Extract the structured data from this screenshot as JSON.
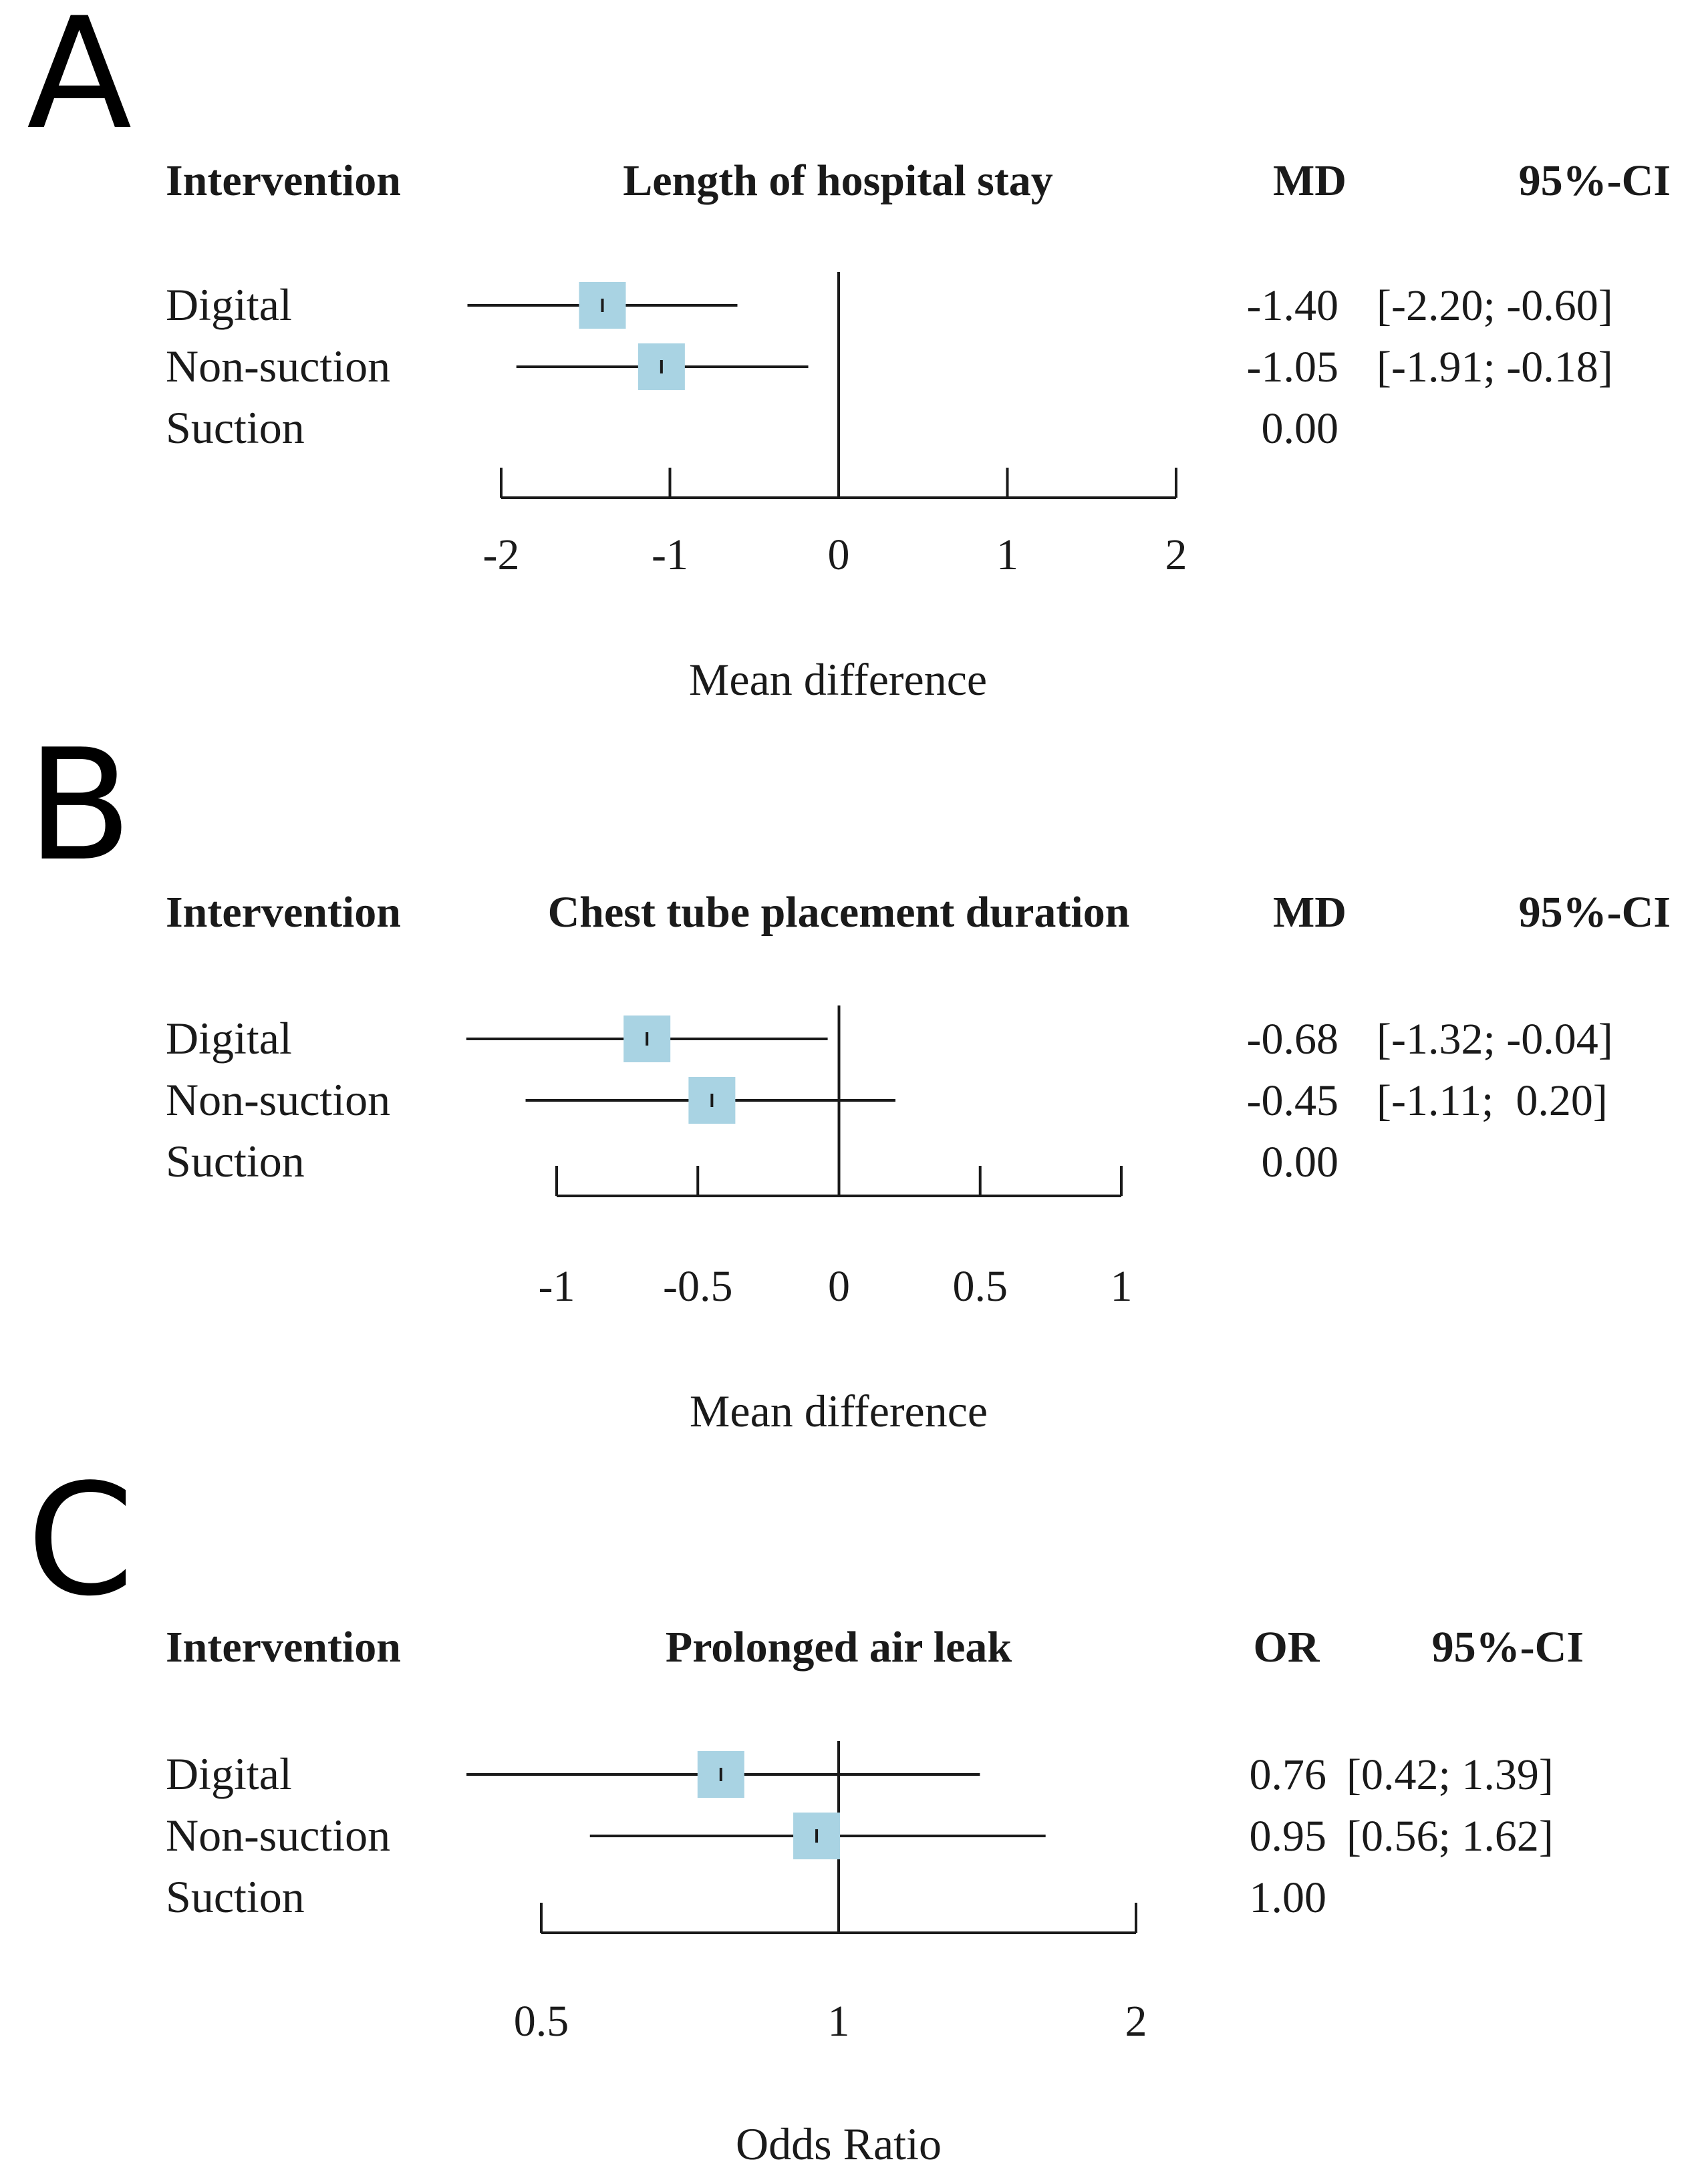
{
  "chart_data": [
    {
      "type": "forest",
      "panel": "A",
      "outcome": "Length of hospital stay",
      "headers": {
        "intervention": "Intervention",
        "estimate": "MD",
        "ci": "95%-CI"
      },
      "xlabel": "Mean difference",
      "scale": "linear",
      "xlim": [
        -2,
        2
      ],
      "ticks": [
        -2,
        -1,
        0,
        1,
        2
      ],
      "tick_labels": [
        "-2",
        "-1",
        "0",
        "1",
        "2"
      ],
      "reference": 0,
      "rows": [
        {
          "label": "Digital",
          "estimate": -1.4,
          "lower": -2.2,
          "upper": -0.6,
          "estimate_text": "-1.40",
          "ci_text": "[-2.20; -0.60]"
        },
        {
          "label": "Non-suction",
          "estimate": -1.05,
          "lower": -1.91,
          "upper": -0.18,
          "estimate_text": "-1.05",
          "ci_text": "[-1.91; -0.18]"
        },
        {
          "label": "Suction",
          "estimate": 0.0,
          "lower": null,
          "upper": null,
          "estimate_text": "0.00",
          "ci_text": ""
        }
      ]
    },
    {
      "type": "forest",
      "panel": "B",
      "outcome": "Chest tube placement duration",
      "headers": {
        "intervention": "Intervention",
        "estimate": "MD",
        "ci": "95%-CI"
      },
      "xlabel": "Mean difference",
      "scale": "linear",
      "xlim": [
        -1,
        1
      ],
      "ticks": [
        -1,
        -0.5,
        0,
        0.5,
        1
      ],
      "tick_labels": [
        "-1",
        "-0.5",
        "0",
        "0.5",
        "1"
      ],
      "reference": 0,
      "rows": [
        {
          "label": "Digital",
          "estimate": -0.68,
          "lower": -1.32,
          "upper": -0.04,
          "estimate_text": "-0.68",
          "ci_text": "[-1.32; -0.04]"
        },
        {
          "label": "Non-suction",
          "estimate": -0.45,
          "lower": -1.11,
          "upper": 0.2,
          "estimate_text": "-0.45",
          "ci_text": "[-1.11;  0.20]"
        },
        {
          "label": "Suction",
          "estimate": 0.0,
          "lower": null,
          "upper": null,
          "estimate_text": "0.00",
          "ci_text": ""
        }
      ]
    },
    {
      "type": "forest",
      "panel": "C",
      "outcome": "Prolonged air leak",
      "headers": {
        "intervention": "Intervention",
        "estimate": "OR",
        "ci": "95%-CI"
      },
      "xlabel": "Odds Ratio",
      "scale": "log",
      "xlim": [
        0.5,
        2
      ],
      "ticks": [
        0.5,
        1,
        2
      ],
      "tick_labels": [
        "0.5",
        "1",
        "2"
      ],
      "reference": 1,
      "rows": [
        {
          "label": "Digital",
          "estimate": 0.76,
          "lower": 0.42,
          "upper": 1.39,
          "estimate_text": "0.76",
          "ci_text": "[0.42; 1.39]"
        },
        {
          "label": "Non-suction",
          "estimate": 0.95,
          "lower": 0.56,
          "upper": 1.62,
          "estimate_text": "0.95",
          "ci_text": "[0.56; 1.62]"
        },
        {
          "label": "Suction",
          "estimate": 1.0,
          "lower": null,
          "upper": null,
          "estimate_text": "1.00",
          "ci_text": ""
        }
      ]
    }
  ]
}
